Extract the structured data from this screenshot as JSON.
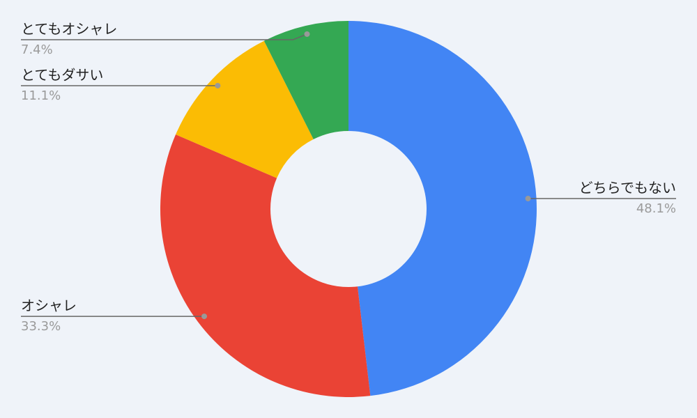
{
  "chart_data": {
    "type": "donut",
    "categories": [
      "どちらでもない",
      "オシャレ",
      "とてもダサい",
      "とてもオシャレ"
    ],
    "values": [
      48.1,
      33.3,
      11.1,
      7.4
    ],
    "value_labels": [
      "48.1%",
      "33.3%",
      "11.1%",
      "7.4%"
    ],
    "colors": [
      "#4285f4",
      "#ea4335",
      "#fbbc04",
      "#34a853"
    ]
  }
}
